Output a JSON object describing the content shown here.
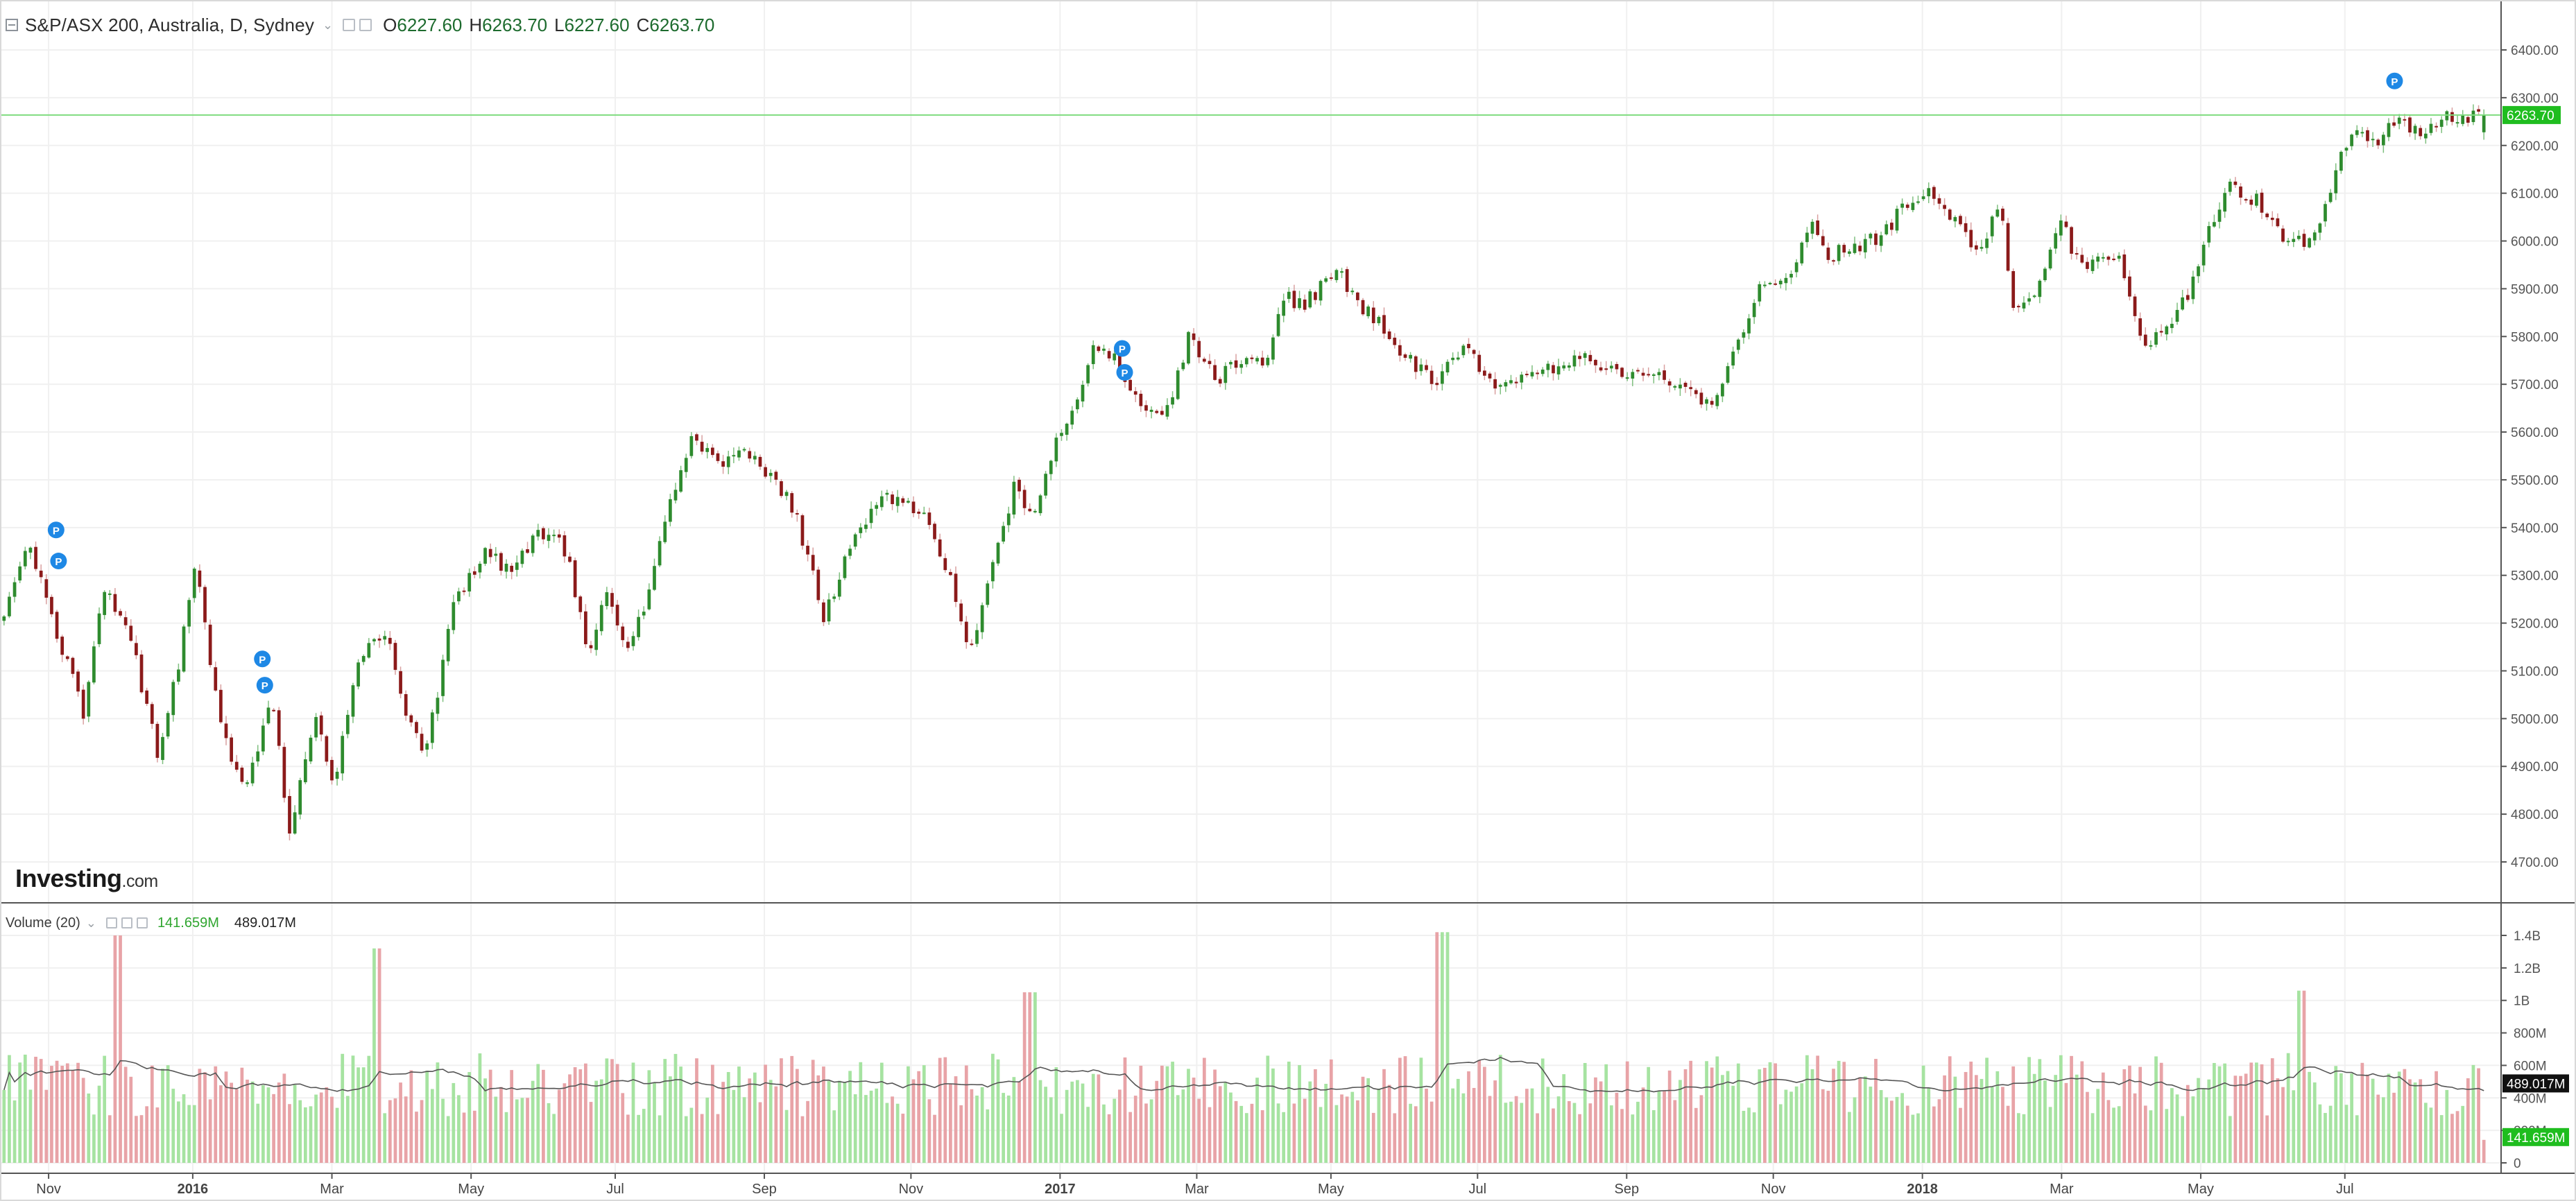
{
  "main_legend": {
    "title": "S&P/ASX 200, Australia, D, Sydney",
    "o_label": "O",
    "o_value": "6227.60",
    "h_label": "H",
    "h_value": "6263.70",
    "l_label": "L",
    "l_value": "6227.60",
    "c_label": "C",
    "c_value": "6263.70"
  },
  "volume_legend": {
    "title": "Volume (20)",
    "value1": "141.659M",
    "value2": "489.017M"
  },
  "logo": {
    "brand": "Investing",
    "suffix": ".com"
  },
  "colors": {
    "up": "#2e8b2e",
    "down": "#8b1a1a",
    "vol_up": "#a6e3a1",
    "vol_down": "#e8a3a7",
    "last_price": "#1fbd1f",
    "grid": "#f0f0f0",
    "ma": "#555555",
    "marker": "#1e88e5"
  },
  "chart_data": [
    {
      "type": "candlestick",
      "title": "S&P/ASX 200, Australia, D, Sydney",
      "period": "Daily",
      "ylim": [
        4650,
        6480
      ],
      "y_ticks": [
        "4700.00",
        "4800.00",
        "4900.00",
        "5000.00",
        "5100.00",
        "5200.00",
        "5300.00",
        "5400.00",
        "5500.00",
        "5600.00",
        "5700.00",
        "5800.00",
        "5900.00",
        "6000.00",
        "6100.00",
        "6200.00",
        "6300.00",
        "6400.00"
      ],
      "x_ticks": [
        "Nov",
        "2016",
        "Mar",
        "May",
        "Jul",
        "Sep",
        "Nov",
        "2017",
        "Mar",
        "May",
        "Jul",
        "Sep",
        "Nov",
        "2018",
        "Mar",
        "May",
        "Jul"
      ],
      "bold_x_ticks": [
        "2016",
        "2017",
        "2018"
      ],
      "last_price": 6263.7,
      "last_price_label": "6263.70",
      "price_path": [
        {
          "t": 0.0,
          "v": 5205
        },
        {
          "t": 0.011,
          "v": 5360
        },
        {
          "t": 0.018,
          "v": 5250
        },
        {
          "t": 0.033,
          "v": 5010
        },
        {
          "t": 0.041,
          "v": 5270
        },
        {
          "t": 0.052,
          "v": 5170
        },
        {
          "t": 0.063,
          "v": 4920
        },
        {
          "t": 0.07,
          "v": 5080
        },
        {
          "t": 0.078,
          "v": 5320
        },
        {
          "t": 0.088,
          "v": 4990
        },
        {
          "t": 0.097,
          "v": 4850
        },
        {
          "t": 0.109,
          "v": 5030
        },
        {
          "t": 0.116,
          "v": 4770
        },
        {
          "t": 0.126,
          "v": 5000
        },
        {
          "t": 0.134,
          "v": 4870
        },
        {
          "t": 0.143,
          "v": 5130
        },
        {
          "t": 0.154,
          "v": 5190
        },
        {
          "t": 0.163,
          "v": 5010
        },
        {
          "t": 0.171,
          "v": 4930
        },
        {
          "t": 0.182,
          "v": 5240
        },
        {
          "t": 0.195,
          "v": 5360
        },
        {
          "t": 0.203,
          "v": 5310
        },
        {
          "t": 0.217,
          "v": 5390
        },
        {
          "t": 0.228,
          "v": 5350
        },
        {
          "t": 0.236,
          "v": 5120
        },
        {
          "t": 0.244,
          "v": 5280
        },
        {
          "t": 0.251,
          "v": 5140
        },
        {
          "t": 0.26,
          "v": 5250
        },
        {
          "t": 0.268,
          "v": 5440
        },
        {
          "t": 0.278,
          "v": 5580
        },
        {
          "t": 0.288,
          "v": 5530
        },
        {
          "t": 0.297,
          "v": 5560
        },
        {
          "t": 0.305,
          "v": 5530
        },
        {
          "t": 0.319,
          "v": 5440
        },
        {
          "t": 0.331,
          "v": 5210
        },
        {
          "t": 0.343,
          "v": 5380
        },
        {
          "t": 0.354,
          "v": 5470
        },
        {
          "t": 0.363,
          "v": 5460
        },
        {
          "t": 0.373,
          "v": 5420
        },
        {
          "t": 0.381,
          "v": 5300
        },
        {
          "t": 0.391,
          "v": 5130
        },
        {
          "t": 0.399,
          "v": 5340
        },
        {
          "t": 0.408,
          "v": 5490
        },
        {
          "t": 0.416,
          "v": 5420
        },
        {
          "t": 0.424,
          "v": 5570
        },
        {
          "t": 0.432,
          "v": 5650
        },
        {
          "t": 0.44,
          "v": 5780
        },
        {
          "t": 0.449,
          "v": 5750
        },
        {
          "t": 0.457,
          "v": 5660
        },
        {
          "t": 0.468,
          "v": 5630
        },
        {
          "t": 0.478,
          "v": 5800
        },
        {
          "t": 0.49,
          "v": 5710
        },
        {
          "t": 0.5,
          "v": 5760
        },
        {
          "t": 0.508,
          "v": 5740
        },
        {
          "t": 0.517,
          "v": 5880
        },
        {
          "t": 0.525,
          "v": 5870
        },
        {
          "t": 0.538,
          "v": 5940
        },
        {
          "t": 0.546,
          "v": 5860
        },
        {
          "t": 0.555,
          "v": 5830
        },
        {
          "t": 0.566,
          "v": 5750
        },
        {
          "t": 0.578,
          "v": 5700
        },
        {
          "t": 0.589,
          "v": 5790
        },
        {
          "t": 0.601,
          "v": 5690
        },
        {
          "t": 0.613,
          "v": 5720
        },
        {
          "t": 0.627,
          "v": 5740
        },
        {
          "t": 0.64,
          "v": 5760
        },
        {
          "t": 0.654,
          "v": 5700
        },
        {
          "t": 0.664,
          "v": 5740
        },
        {
          "t": 0.679,
          "v": 5680
        },
        {
          "t": 0.688,
          "v": 5660
        },
        {
          "t": 0.694,
          "v": 5720
        },
        {
          "t": 0.706,
          "v": 5890
        },
        {
          "t": 0.719,
          "v": 5920
        },
        {
          "t": 0.727,
          "v": 6040
        },
        {
          "t": 0.736,
          "v": 5970
        },
        {
          "t": 0.746,
          "v": 5990
        },
        {
          "t": 0.757,
          "v": 6010
        },
        {
          "t": 0.768,
          "v": 6090
        },
        {
          "t": 0.778,
          "v": 6100
        },
        {
          "t": 0.786,
          "v": 6040
        },
        {
          "t": 0.796,
          "v": 5980
        },
        {
          "t": 0.804,
          "v": 6090
        },
        {
          "t": 0.81,
          "v": 5850
        },
        {
          "t": 0.818,
          "v": 5880
        },
        {
          "t": 0.828,
          "v": 6050
        },
        {
          "t": 0.836,
          "v": 5950
        },
        {
          "t": 0.845,
          "v": 5970
        },
        {
          "t": 0.853,
          "v": 5960
        },
        {
          "t": 0.862,
          "v": 5760
        },
        {
          "t": 0.871,
          "v": 5820
        },
        {
          "t": 0.881,
          "v": 5900
        },
        {
          "t": 0.889,
          "v": 6040
        },
        {
          "t": 0.898,
          "v": 6120
        },
        {
          "t": 0.908,
          "v": 6080
        },
        {
          "t": 0.917,
          "v": 6010
        },
        {
          "t": 0.926,
          "v": 6000
        },
        {
          "t": 0.934,
          "v": 6050
        },
        {
          "t": 0.945,
          "v": 6230
        },
        {
          "t": 0.955,
          "v": 6210
        },
        {
          "t": 0.965,
          "v": 6260
        },
        {
          "t": 0.974,
          "v": 6220
        },
        {
          "t": 0.984,
          "v": 6264
        }
      ],
      "candles_count": 470,
      "markers": [
        {
          "label": "P",
          "t": 0.022,
          "v": 5395
        },
        {
          "label": "P",
          "t": 0.023,
          "v": 5330
        },
        {
          "label": "P",
          "t": 0.105,
          "v": 5125
        },
        {
          "label": "P",
          "t": 0.106,
          "v": 5070
        },
        {
          "label": "P",
          "t": 0.451,
          "v": 5775
        },
        {
          "label": "P",
          "t": 0.452,
          "v": 5725
        },
        {
          "label": "P",
          "t": 0.963,
          "v": 6335
        }
      ]
    },
    {
      "type": "bar",
      "title": "Volume (20)",
      "ylim": [
        0,
        1450000000
      ],
      "y_ticks": [
        "0",
        "200M",
        "400M",
        "600M",
        "800M",
        "1B",
        "1.2B",
        "1.4B"
      ],
      "moving_average_period": 20,
      "current_volume_label": "141.659M",
      "current_ma_label": "489.017M",
      "current_ma_value": 489017000,
      "volume_baseline_avg": 520000000,
      "volume_peaks": [
        {
          "t": 0.047,
          "v": 1400000000
        },
        {
          "t": 0.151,
          "v": 1320000000
        },
        {
          "t": 0.58,
          "v": 1420000000
        },
        {
          "t": 0.414,
          "v": 1050000000
        },
        {
          "t": 0.926,
          "v": 1060000000
        }
      ]
    }
  ]
}
